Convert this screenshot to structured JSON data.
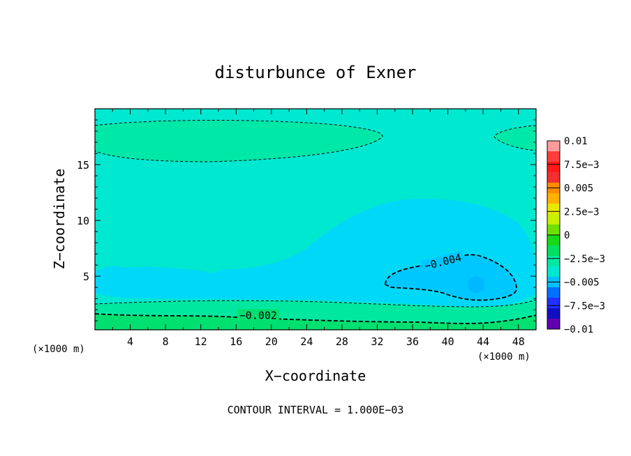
{
  "chart_data": {
    "type": "contour",
    "title": "disturbunce of Exner",
    "xlabel": "X−coordinate",
    "ylabel": "Z−coordinate",
    "x_unit": "(×1000 m)",
    "x_unit_right": "(×1000 m)",
    "xlim": [
      0,
      50
    ],
    "ylim": [
      0.2,
      20
    ],
    "x_ticks": [
      4,
      8,
      12,
      16,
      20,
      24,
      28,
      32,
      36,
      40,
      44,
      48
    ],
    "x_tick_labels": [
      "4",
      "8",
      "12",
      "16",
      "20",
      "24",
      "28",
      "32",
      "36",
      "40",
      "44",
      "48"
    ],
    "y_ticks": [
      5,
      10,
      15
    ],
    "y_tick_labels": [
      "5",
      "10",
      "15"
    ],
    "footer": "CONTOUR INTERVAL = 1.000E−03",
    "contour_labels": [
      {
        "text": "−0.002",
        "value": -0.002,
        "x": 18.5,
        "y": 1.3
      },
      {
        "text": "−0.004",
        "value": -0.004,
        "x": 39.5,
        "y": 6.1
      }
    ],
    "colorbar": {
      "levels": [
        "0.01",
        "7.5e−3",
        "0.005",
        "2.5e−3",
        "0",
        "−2.5e−3",
        "−0.005",
        "−7.5e−3",
        "−0.01"
      ],
      "colors": [
        "#ff9b9b",
        "#ff3c3c",
        "#ff1a1a",
        "#f03030",
        "#ff8c00",
        "#ffb000",
        "#e8e800",
        "#c8f000",
        "#70e000",
        "#18d818",
        "#00e060",
        "#00e8a0",
        "#00e8d0",
        "#00c0ff",
        "#0070ff",
        "#2030ff",
        "#1010c0",
        "#6000b0"
      ]
    },
    "regions": [
      {
        "name": "background",
        "value_range": [
          -0.003,
          -0.002
        ],
        "color": "#00e8d0"
      },
      {
        "name": "upper band",
        "value_range": [
          -0.002,
          -0.001
        ],
        "color": "#00e8a0"
      },
      {
        "name": "low-level anomaly",
        "value_range": [
          -0.004,
          -0.003
        ],
        "color": "#00d8f8"
      },
      {
        "name": "minimum core",
        "value_range": [
          -0.005,
          -0.004
        ],
        "color": "#00c8ff"
      },
      {
        "name": "surface band",
        "value_range": [
          -0.001,
          0
        ],
        "color": "#00e070"
      }
    ],
    "grid": false
  }
}
